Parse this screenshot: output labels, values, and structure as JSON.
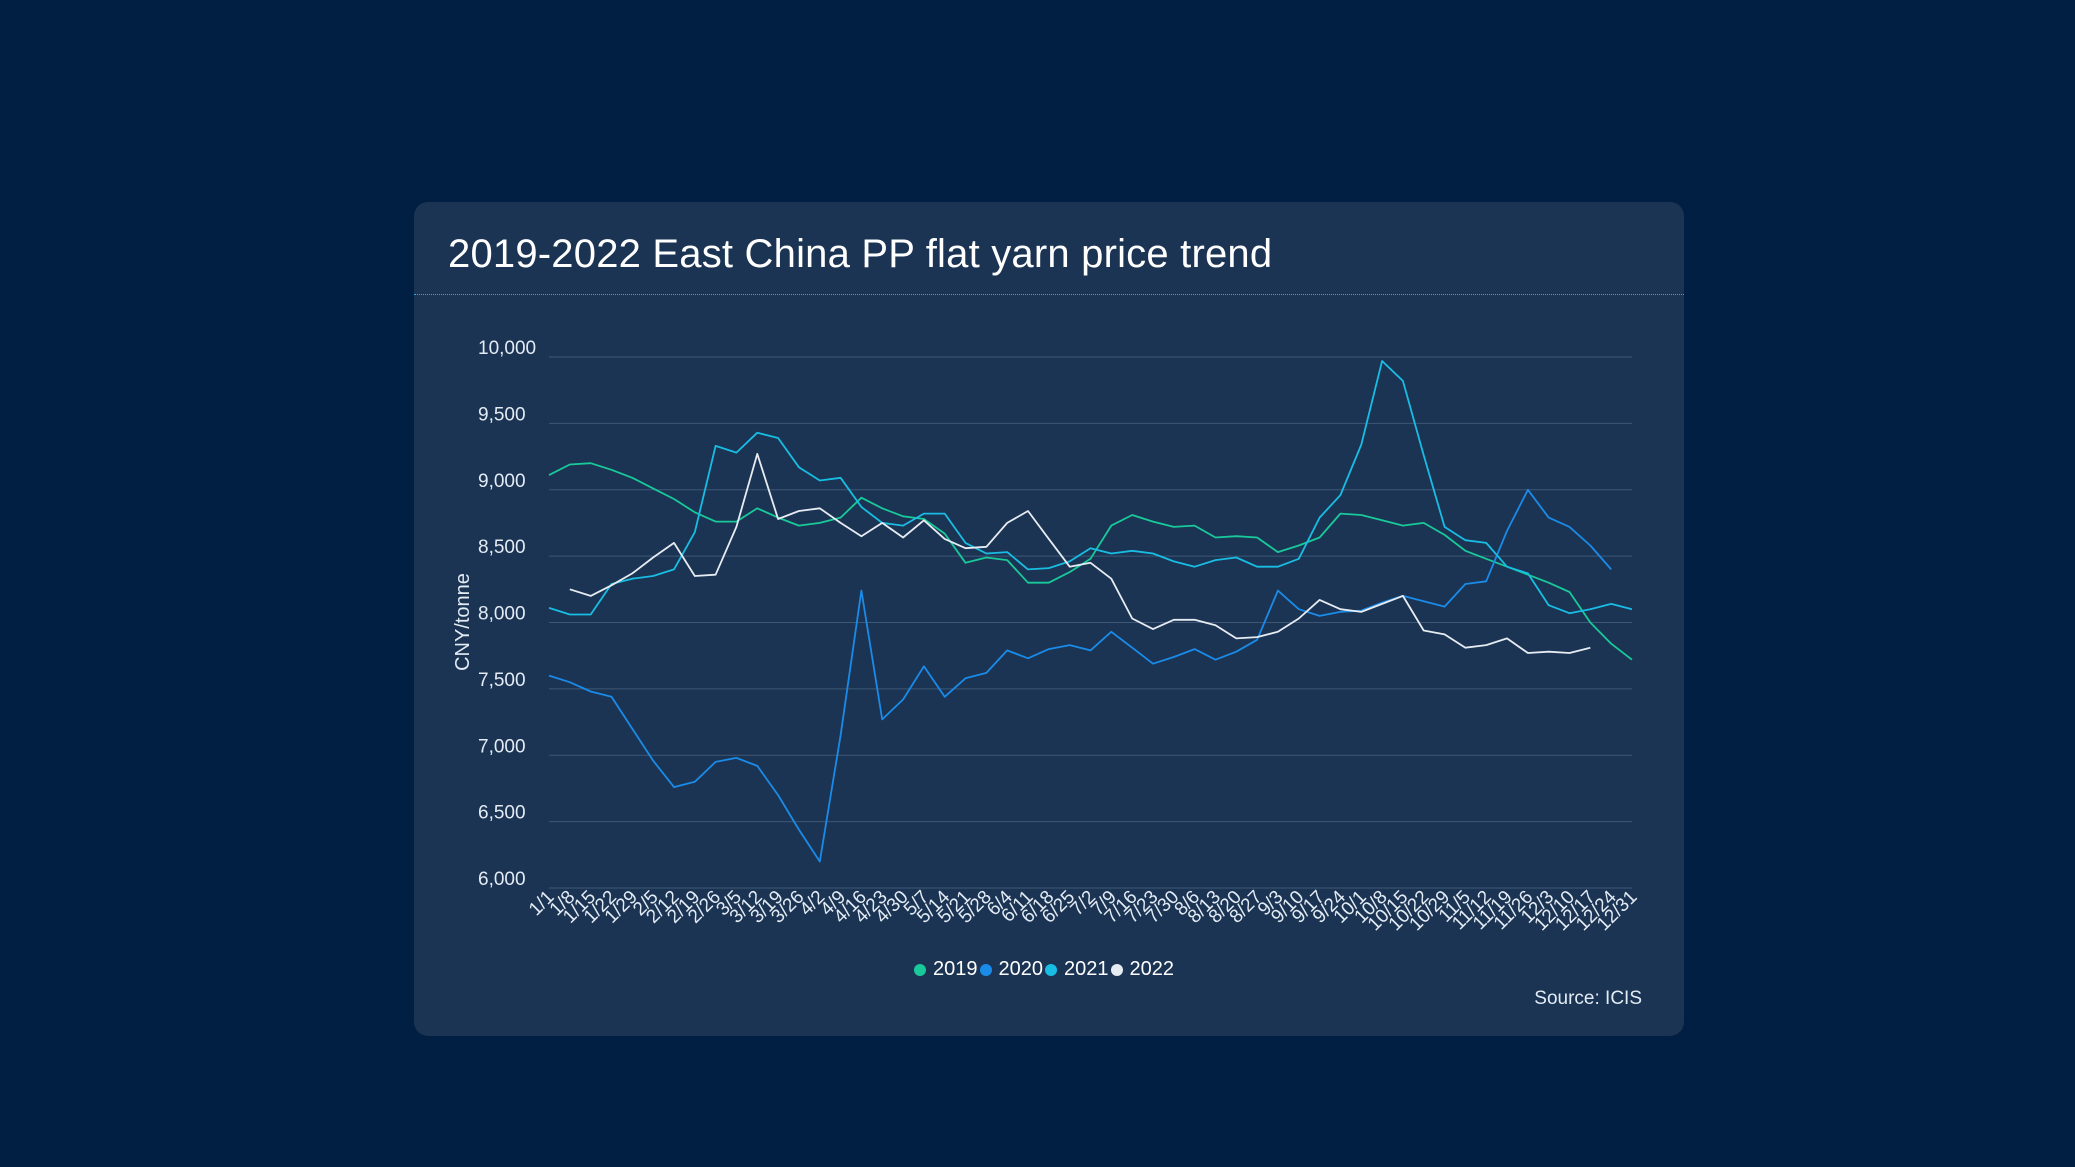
{
  "page": {
    "title": "2019-2022 East China PP flat yarn price trend",
    "source": "Source: ICIS"
  },
  "colors": {
    "2019": "#19c99a",
    "2020": "#1a8be8",
    "2021": "#19bde3",
    "2022": "#e6ecf2",
    "grid": "#3d5775"
  },
  "chart_data": {
    "type": "line",
    "title": "2019-2022 East China PP flat yarn price trend",
    "xlabel": "",
    "ylabel": "CNY/tonne",
    "ylim": [
      6000,
      10000
    ],
    "yticks": [
      6000,
      6500,
      7000,
      7500,
      8000,
      8500,
      9000,
      9500,
      10000
    ],
    "ytick_labels": [
      "6,000",
      "6,500",
      "7,000",
      "7,500",
      "8,000",
      "8,500",
      "9,000",
      "9,500",
      "10,000"
    ],
    "categories": [
      "1/1",
      "1/8",
      "1/15",
      "1/22",
      "1/29",
      "2/5",
      "2/12",
      "2/19",
      "2/26",
      "3/5",
      "3/12",
      "3/19",
      "3/26",
      "4/2",
      "4/9",
      "4/16",
      "4/23",
      "4/30",
      "5/7",
      "5/14",
      "5/21",
      "5/28",
      "6/4",
      "6/11",
      "6/18",
      "6/25",
      "7/2",
      "7/9",
      "7/16",
      "7/23",
      "7/30",
      "8/6",
      "8/13",
      "8/20",
      "8/27",
      "9/3",
      "9/10",
      "9/17",
      "9/24",
      "10/1",
      "10/8",
      "10/15",
      "10/22",
      "10/29",
      "11/5",
      "11/12",
      "11/19",
      "11/26",
      "12/3",
      "12/10",
      "12/17",
      "12/24",
      "12/31"
    ],
    "grid": true,
    "legend_position": "bottom",
    "series": [
      {
        "name": "2019",
        "values": [
          9110,
          9190,
          9200,
          9150,
          9090,
          9010,
          8930,
          8830,
          8760,
          8760,
          8860,
          8790,
          8730,
          8750,
          8790,
          8940,
          8860,
          8800,
          8780,
          8670,
          8450,
          8490,
          8470,
          8300,
          8300,
          8380,
          8480,
          8730,
          8810,
          8760,
          8720,
          8730,
          8640,
          8650,
          8640,
          8530,
          8580,
          8640,
          8820,
          8810,
          8770,
          8730,
          8750,
          8660,
          8540,
          8480,
          8420,
          8360,
          8300,
          8230,
          8000,
          7840,
          7720
        ]
      },
      {
        "name": "2020",
        "values": [
          7600,
          7550,
          7480,
          7440,
          7200,
          6960,
          6760,
          6800,
          6950,
          6980,
          6920,
          6700,
          6440,
          6200,
          7150,
          8240,
          7270,
          7420,
          7670,
          7440,
          7580,
          7620,
          7790,
          7730,
          7800,
          7830,
          7790,
          7930,
          7810,
          7690,
          7740,
          7800,
          7720,
          7780,
          7870,
          8240,
          8100,
          8050,
          8080,
          8090,
          8150,
          8200,
          8160,
          8120,
          8290,
          8310,
          8690,
          9000,
          8790,
          8720,
          8580,
          8400,
          null
        ]
      },
      {
        "name": "2021",
        "values": [
          8110,
          8060,
          8060,
          8290,
          8330,
          8350,
          8400,
          8680,
          9330,
          9280,
          9430,
          9390,
          9170,
          9070,
          9090,
          8870,
          8750,
          8730,
          8820,
          8820,
          8600,
          8520,
          8530,
          8400,
          8410,
          8460,
          8560,
          8520,
          8540,
          8520,
          8460,
          8420,
          8470,
          8490,
          8420,
          8420,
          8480,
          8790,
          8960,
          9340,
          9970,
          9820,
          9260,
          8720,
          8620,
          8600,
          8420,
          8370,
          8130,
          8070,
          8100,
          8140,
          8100
        ]
      },
      {
        "name": "2022",
        "values": [
          null,
          8250,
          8200,
          8280,
          8370,
          8490,
          8600,
          8350,
          8360,
          8720,
          9270,
          8780,
          8840,
          8860,
          8750,
          8650,
          8750,
          8640,
          8770,
          8630,
          8560,
          8570,
          8750,
          8840,
          8630,
          8420,
          8450,
          8330,
          8030,
          7950,
          8020,
          8020,
          7980,
          7880,
          7890,
          7930,
          8030,
          8170,
          8100,
          8080,
          8140,
          8200,
          7940,
          7910,
          7810,
          7830,
          7880,
          7770,
          7780,
          7770,
          7810,
          null,
          null
        ]
      }
    ]
  }
}
